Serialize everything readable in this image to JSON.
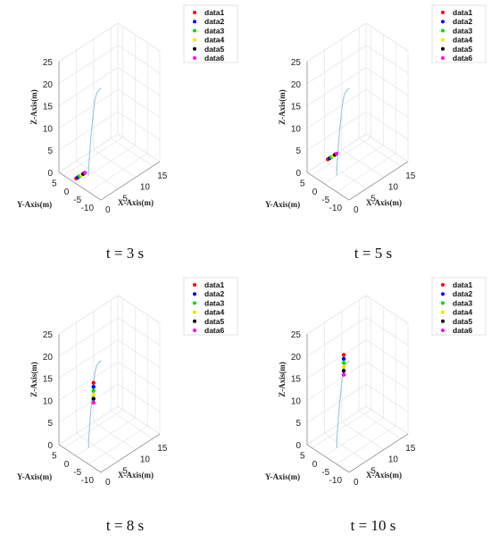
{
  "chart_data": [
    {
      "type": "scatter",
      "caption": "t = 3 s",
      "xlabel": "X-Axis(m)",
      "ylabel": "Y-Axis(m)",
      "zlabel": "Z-Axis(m)",
      "xticks": [
        "0",
        "5",
        "10",
        "15"
      ],
      "yticks": [
        "-10",
        "-5",
        "0",
        "5"
      ],
      "zticks": [
        "0",
        "5",
        "10",
        "15",
        "20",
        "25"
      ],
      "xlim": [
        0,
        17
      ],
      "ylim": [
        -10,
        7
      ],
      "zlim": [
        0,
        25
      ],
      "grid": true,
      "legend_position": "top-right",
      "trajectory": [
        [
          3.6,
          0,
          0
        ],
        [
          3.6,
          0,
          2
        ],
        [
          3.9,
          0,
          5
        ],
        [
          4.2,
          0,
          8
        ],
        [
          4.6,
          0,
          11
        ],
        [
          5.0,
          0,
          14
        ],
        [
          5.4,
          0,
          16.2
        ],
        [
          5.9,
          0,
          17.4
        ],
        [
          6.6,
          0,
          17.8
        ],
        [
          7.2,
          0,
          17.9
        ]
      ],
      "series": [
        {
          "name": "data1",
          "color": "#ff0000",
          "points": [
            [
              0.0,
              0,
              1.2
            ]
          ]
        },
        {
          "name": "data2",
          "color": "#0000ff",
          "points": [
            [
              0.5,
              0,
              1.2
            ]
          ]
        },
        {
          "name": "data3",
          "color": "#00dd00",
          "points": [
            [
              1.0,
              0,
              1.2
            ]
          ]
        },
        {
          "name": "data4",
          "color": "#ffe000",
          "points": [
            [
              1.5,
              0,
              1.2
            ]
          ]
        },
        {
          "name": "data5",
          "color": "#000000",
          "points": [
            [
              2.0,
              0,
              1.2
            ]
          ]
        },
        {
          "name": "data6",
          "color": "#ff00ff",
          "points": [
            [
              2.5,
              0,
              1.2
            ]
          ]
        }
      ]
    },
    {
      "type": "scatter",
      "caption": "t = 5 s",
      "xlabel": "X-Axis(m)",
      "ylabel": "Y-Axis(m)",
      "zlabel": "Z-Axis(m)",
      "xticks": [
        "0",
        "5",
        "10",
        "15"
      ],
      "yticks": [
        "-10",
        "-5",
        "0",
        "5"
      ],
      "zticks": [
        "0",
        "5",
        "10",
        "15",
        "20",
        "25"
      ],
      "xlim": [
        0,
        17
      ],
      "ylim": [
        -10,
        7
      ],
      "zlim": [
        0,
        25
      ],
      "grid": true,
      "legend_position": "top-right",
      "trajectory": [
        [
          3.6,
          0,
          0
        ],
        [
          3.6,
          0,
          2
        ],
        [
          3.9,
          0,
          5
        ],
        [
          4.2,
          0,
          8
        ],
        [
          4.6,
          0,
          11
        ],
        [
          5.0,
          0,
          14
        ],
        [
          5.4,
          0,
          16.2
        ],
        [
          5.9,
          0,
          17.4
        ],
        [
          6.6,
          0,
          17.8
        ],
        [
          7.2,
          0,
          17.9
        ]
      ],
      "series": [
        {
          "name": "data1",
          "color": "#ff0000",
          "points": [
            [
              1.0,
              0,
              5.0
            ]
          ]
        },
        {
          "name": "data2",
          "color": "#0000ff",
          "points": [
            [
              1.5,
              0,
              5.0
            ]
          ]
        },
        {
          "name": "data3",
          "color": "#00dd00",
          "points": [
            [
              2.0,
              0,
              5.0
            ]
          ]
        },
        {
          "name": "data4",
          "color": "#ffe000",
          "points": [
            [
              2.5,
              0,
              5.0
            ]
          ]
        },
        {
          "name": "data5",
          "color": "#000000",
          "points": [
            [
              3.0,
              0,
              5.0
            ]
          ]
        },
        {
          "name": "data6",
          "color": "#ff00ff",
          "points": [
            [
              3.5,
              0,
              5.0
            ]
          ]
        }
      ]
    },
    {
      "type": "scatter",
      "caption": "t = 8 s",
      "xlabel": "X-Axis(m)",
      "ylabel": "Y-Axis(m)",
      "zlabel": "Z-Axis(m)",
      "xticks": [
        "0",
        "5",
        "10",
        "15"
      ],
      "yticks": [
        "-10",
        "-5",
        "0",
        "5"
      ],
      "zticks": [
        "0",
        "5",
        "10",
        "15",
        "20",
        "25"
      ],
      "xlim": [
        0,
        17
      ],
      "ylim": [
        -10,
        7
      ],
      "zlim": [
        0,
        25
      ],
      "grid": true,
      "legend_position": "top-right",
      "trajectory": [
        [
          3.6,
          0,
          0
        ],
        [
          3.6,
          0,
          2
        ],
        [
          3.9,
          0,
          5
        ],
        [
          4.2,
          0,
          8
        ],
        [
          4.6,
          0,
          11
        ],
        [
          5.0,
          0,
          14
        ],
        [
          5.4,
          0,
          16.2
        ],
        [
          5.9,
          0,
          17.4
        ],
        [
          6.6,
          0,
          17.8
        ],
        [
          7.2,
          0,
          17.9
        ]
      ],
      "series": [
        {
          "name": "data1",
          "color": "#ff0000",
          "points": [
            [
              5.0,
              0,
              14.0
            ]
          ]
        },
        {
          "name": "data2",
          "color": "#0000ff",
          "points": [
            [
              5.0,
              0,
              13.1
            ]
          ]
        },
        {
          "name": "data3",
          "color": "#00dd00",
          "points": [
            [
              5.0,
              0,
              12.2
            ]
          ]
        },
        {
          "name": "data4",
          "color": "#ffe000",
          "points": [
            [
              5.0,
              0,
              11.3
            ]
          ]
        },
        {
          "name": "data5",
          "color": "#000000",
          "points": [
            [
              5.0,
              0,
              10.4
            ]
          ]
        },
        {
          "name": "data6",
          "color": "#ff00ff",
          "points": [
            [
              5.0,
              0,
              9.5
            ]
          ]
        }
      ]
    },
    {
      "type": "scatter",
      "caption": "t = 10 s",
      "xlabel": "X-Axis(m)",
      "ylabel": "Y-Axis(m)",
      "zlabel": "Z-Axis(m)",
      "xticks": [
        "0",
        "5",
        "10",
        "15"
      ],
      "yticks": [
        "-10",
        "-5",
        "0",
        "5"
      ],
      "zticks": [
        "0",
        "5",
        "10",
        "15",
        "20",
        "25"
      ],
      "xlim": [
        0,
        17
      ],
      "ylim": [
        -10,
        7
      ],
      "zlim": [
        0,
        25
      ],
      "grid": true,
      "legend_position": "top-right",
      "trajectory": [
        [
          3.6,
          0,
          0
        ],
        [
          3.6,
          0,
          2
        ],
        [
          3.9,
          0,
          5
        ],
        [
          4.2,
          0,
          8
        ],
        [
          4.6,
          0,
          11
        ],
        [
          5.0,
          0,
          14
        ],
        [
          5.4,
          0,
          16.2
        ],
        [
          5.9,
          0,
          17.4
        ],
        [
          6.6,
          0,
          17.8
        ],
        [
          7.2,
          0,
          17.9
        ]
      ],
      "series": [
        {
          "name": "data1",
          "color": "#ff0000",
          "points": [
            [
              5.6,
              0,
              20.0
            ]
          ]
        },
        {
          "name": "data2",
          "color": "#0000ff",
          "points": [
            [
              5.6,
              0,
              19.1
            ]
          ]
        },
        {
          "name": "data3",
          "color": "#00dd00",
          "points": [
            [
              5.6,
              0,
              18.2
            ]
          ]
        },
        {
          "name": "data4",
          "color": "#ffe000",
          "points": [
            [
              5.6,
              0,
              17.3
            ]
          ]
        },
        {
          "name": "data5",
          "color": "#000000",
          "points": [
            [
              5.6,
              0,
              16.4
            ]
          ]
        },
        {
          "name": "data6",
          "color": "#ff00ff",
          "points": [
            [
              5.6,
              0,
              15.5
            ]
          ]
        }
      ]
    }
  ]
}
